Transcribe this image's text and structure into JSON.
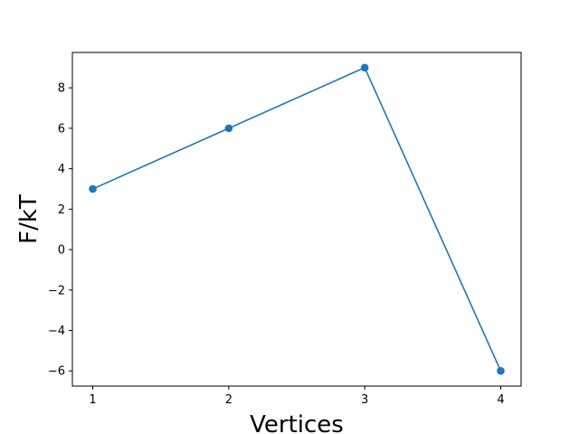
{
  "chart_data": {
    "type": "line",
    "title": "",
    "xlabel": "Vertices",
    "ylabel": "F/kT",
    "x": [
      1,
      2,
      3,
      4
    ],
    "series": [
      {
        "values": [
          3,
          6,
          9,
          -6
        ],
        "color": "#1f77b4",
        "marker": "circle"
      }
    ],
    "xlim": [
      0.85,
      4.15
    ],
    "ylim": [
      -6.75,
      9.75
    ],
    "xticks": [
      1,
      2,
      3,
      4
    ],
    "xtick_labels": [
      "1",
      "2",
      "3",
      "4"
    ],
    "yticks": [
      -6,
      -4,
      -2,
      0,
      2,
      4,
      6,
      8
    ],
    "ytick_labels": [
      "−6",
      "−4",
      "−2",
      "0",
      "2",
      "4",
      "6",
      "8"
    ],
    "grid": false,
    "legend": "none"
  }
}
